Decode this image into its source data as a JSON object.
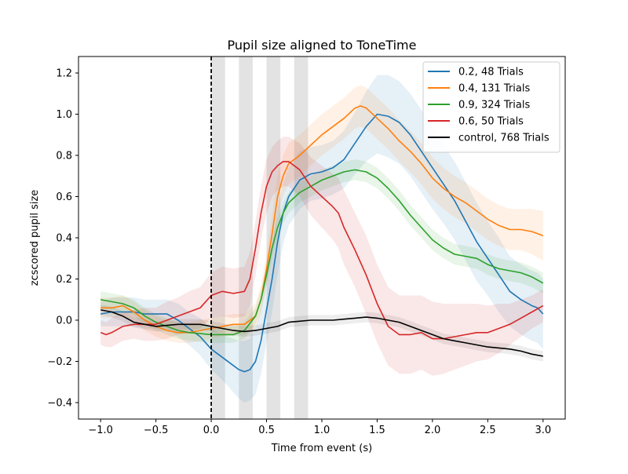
{
  "chart_data": {
    "type": "line",
    "title": "Pupil size aligned to ToneTime",
    "xlabel": "Time from event (s)",
    "ylabel": "zcscored pupil size",
    "xlim": [
      -1.2,
      3.2
    ],
    "ylim": [
      -0.48,
      1.28
    ],
    "xticks": [
      -1.0,
      -0.5,
      0.0,
      0.5,
      1.0,
      1.5,
      2.0,
      2.5,
      3.0
    ],
    "xtick_labels": [
      "−1.0",
      "−0.5",
      "0.0",
      "0.5",
      "1.0",
      "1.5",
      "2.0",
      "2.5",
      "3.0"
    ],
    "yticks": [
      -0.4,
      -0.2,
      0.0,
      0.2,
      0.4,
      0.6,
      0.8,
      1.0,
      1.2
    ],
    "ytick_labels": [
      "−0.4",
      "−0.2",
      "0.0",
      "0.2",
      "0.4",
      "0.6",
      "0.8",
      "1.0",
      "1.2"
    ],
    "grid": false,
    "legend_position": "top-right",
    "event_line_x": 0.0,
    "shaded_intervals": [
      [
        0.0,
        0.125
      ],
      [
        0.25,
        0.375
      ],
      [
        0.5,
        0.625
      ],
      [
        0.75,
        0.875
      ]
    ],
    "series": [
      {
        "name": "0.2, 48 Trials",
        "color": "#1f77b4",
        "points": [
          [
            -1.0,
            0.03
          ],
          [
            -0.9,
            0.04
          ],
          [
            -0.8,
            0.04
          ],
          [
            -0.7,
            0.04
          ],
          [
            -0.6,
            0.03
          ],
          [
            -0.5,
            0.03
          ],
          [
            -0.4,
            0.03
          ],
          [
            -0.3,
            0.0
          ],
          [
            -0.2,
            -0.04
          ],
          [
            -0.1,
            -0.08
          ],
          [
            0.0,
            -0.14
          ],
          [
            0.1,
            -0.18
          ],
          [
            0.2,
            -0.22
          ],
          [
            0.25,
            -0.24
          ],
          [
            0.3,
            -0.25
          ],
          [
            0.35,
            -0.24
          ],
          [
            0.4,
            -0.2
          ],
          [
            0.45,
            -0.1
          ],
          [
            0.5,
            0.05
          ],
          [
            0.55,
            0.2
          ],
          [
            0.6,
            0.38
          ],
          [
            0.65,
            0.52
          ],
          [
            0.7,
            0.6
          ],
          [
            0.8,
            0.68
          ],
          [
            0.9,
            0.71
          ],
          [
            1.0,
            0.72
          ],
          [
            1.1,
            0.74
          ],
          [
            1.2,
            0.78
          ],
          [
            1.3,
            0.86
          ],
          [
            1.4,
            0.94
          ],
          [
            1.5,
            1.0
          ],
          [
            1.6,
            0.99
          ],
          [
            1.7,
            0.96
          ],
          [
            1.8,
            0.9
          ],
          [
            1.9,
            0.82
          ],
          [
            2.0,
            0.74
          ],
          [
            2.1,
            0.66
          ],
          [
            2.2,
            0.58
          ],
          [
            2.3,
            0.48
          ],
          [
            2.4,
            0.38
          ],
          [
            2.5,
            0.3
          ],
          [
            2.6,
            0.22
          ],
          [
            2.7,
            0.14
          ],
          [
            2.8,
            0.1
          ],
          [
            2.9,
            0.07
          ],
          [
            2.95,
            0.06
          ],
          [
            3.0,
            0.03
          ]
        ],
        "band": [
          0.06,
          0.07,
          0.07,
          0.07,
          0.07,
          0.07,
          0.07,
          0.08,
          0.08,
          0.09,
          0.1,
          0.11,
          0.13,
          0.14,
          0.15,
          0.15,
          0.16,
          0.16,
          0.16,
          0.16,
          0.16,
          0.15,
          0.14,
          0.14,
          0.13,
          0.13,
          0.13,
          0.14,
          0.15,
          0.17,
          0.19,
          0.2,
          0.2,
          0.2,
          0.2,
          0.2,
          0.19,
          0.19,
          0.19,
          0.19,
          0.18,
          0.18,
          0.17,
          0.17,
          0.17,
          0.17,
          0.17
        ]
      },
      {
        "name": "0.4, 131 Trials",
        "color": "#ff7f0e",
        "points": [
          [
            -1.0,
            0.06
          ],
          [
            -0.9,
            0.06
          ],
          [
            -0.8,
            0.07
          ],
          [
            -0.7,
            0.04
          ],
          [
            -0.6,
            0.0
          ],
          [
            -0.5,
            -0.03
          ],
          [
            -0.4,
            -0.05
          ],
          [
            -0.3,
            -0.06
          ],
          [
            -0.2,
            -0.06
          ],
          [
            -0.1,
            -0.05
          ],
          [
            0.0,
            -0.04
          ],
          [
            0.1,
            -0.03
          ],
          [
            0.2,
            -0.02
          ],
          [
            0.3,
            -0.02
          ],
          [
            0.4,
            0.02
          ],
          [
            0.45,
            0.1
          ],
          [
            0.5,
            0.25
          ],
          [
            0.55,
            0.42
          ],
          [
            0.6,
            0.6
          ],
          [
            0.65,
            0.7
          ],
          [
            0.7,
            0.76
          ],
          [
            0.8,
            0.8
          ],
          [
            0.9,
            0.85
          ],
          [
            1.0,
            0.9
          ],
          [
            1.1,
            0.94
          ],
          [
            1.2,
            0.98
          ],
          [
            1.3,
            1.03
          ],
          [
            1.35,
            1.04
          ],
          [
            1.4,
            1.03
          ],
          [
            1.5,
            0.98
          ],
          [
            1.6,
            0.93
          ],
          [
            1.7,
            0.87
          ],
          [
            1.8,
            0.82
          ],
          [
            1.9,
            0.76
          ],
          [
            2.0,
            0.69
          ],
          [
            2.1,
            0.64
          ],
          [
            2.2,
            0.6
          ],
          [
            2.3,
            0.57
          ],
          [
            2.4,
            0.53
          ],
          [
            2.5,
            0.49
          ],
          [
            2.6,
            0.46
          ],
          [
            2.7,
            0.44
          ],
          [
            2.8,
            0.44
          ],
          [
            2.9,
            0.43
          ],
          [
            3.0,
            0.41
          ]
        ],
        "band": [
          0.05,
          0.05,
          0.05,
          0.05,
          0.05,
          0.05,
          0.05,
          0.05,
          0.05,
          0.05,
          0.05,
          0.05,
          0.05,
          0.05,
          0.06,
          0.07,
          0.08,
          0.09,
          0.1,
          0.1,
          0.1,
          0.1,
          0.1,
          0.1,
          0.1,
          0.1,
          0.1,
          0.1,
          0.1,
          0.1,
          0.1,
          0.1,
          0.1,
          0.1,
          0.1,
          0.1,
          0.1,
          0.1,
          0.1,
          0.1,
          0.1,
          0.1,
          0.1,
          0.11,
          0.12
        ]
      },
      {
        "name": "0.9, 324 Trials",
        "color": "#2ca02c",
        "points": [
          [
            -1.0,
            0.1
          ],
          [
            -0.9,
            0.09
          ],
          [
            -0.8,
            0.08
          ],
          [
            -0.7,
            0.06
          ],
          [
            -0.6,
            0.02
          ],
          [
            -0.5,
            -0.01
          ],
          [
            -0.4,
            -0.03
          ],
          [
            -0.3,
            -0.05
          ],
          [
            -0.2,
            -0.06
          ],
          [
            -0.1,
            -0.065
          ],
          [
            0.0,
            -0.07
          ],
          [
            0.1,
            -0.07
          ],
          [
            0.2,
            -0.07
          ],
          [
            0.3,
            -0.05
          ],
          [
            0.4,
            0.02
          ],
          [
            0.45,
            0.1
          ],
          [
            0.5,
            0.22
          ],
          [
            0.55,
            0.35
          ],
          [
            0.6,
            0.45
          ],
          [
            0.65,
            0.52
          ],
          [
            0.7,
            0.57
          ],
          [
            0.8,
            0.62
          ],
          [
            0.9,
            0.65
          ],
          [
            1.0,
            0.68
          ],
          [
            1.1,
            0.7
          ],
          [
            1.2,
            0.72
          ],
          [
            1.3,
            0.73
          ],
          [
            1.4,
            0.72
          ],
          [
            1.5,
            0.69
          ],
          [
            1.6,
            0.64
          ],
          [
            1.7,
            0.58
          ],
          [
            1.8,
            0.51
          ],
          [
            1.9,
            0.45
          ],
          [
            2.0,
            0.39
          ],
          [
            2.1,
            0.35
          ],
          [
            2.2,
            0.32
          ],
          [
            2.3,
            0.31
          ],
          [
            2.4,
            0.3
          ],
          [
            2.5,
            0.27
          ],
          [
            2.6,
            0.25
          ],
          [
            2.7,
            0.24
          ],
          [
            2.8,
            0.23
          ],
          [
            2.9,
            0.21
          ],
          [
            3.0,
            0.18
          ]
        ],
        "band": [
          0.04,
          0.04,
          0.04,
          0.04,
          0.04,
          0.04,
          0.04,
          0.04,
          0.04,
          0.04,
          0.04,
          0.04,
          0.04,
          0.04,
          0.04,
          0.05,
          0.05,
          0.05,
          0.05,
          0.05,
          0.05,
          0.05,
          0.05,
          0.05,
          0.05,
          0.05,
          0.05,
          0.05,
          0.05,
          0.05,
          0.05,
          0.05,
          0.05,
          0.05,
          0.05,
          0.05,
          0.05,
          0.05,
          0.05,
          0.05,
          0.05,
          0.05,
          0.05,
          0.05
        ]
      },
      {
        "name": "0.6, 50 Trials",
        "color": "#d62728",
        "points": [
          [
            -1.0,
            -0.06
          ],
          [
            -0.95,
            -0.07
          ],
          [
            -0.9,
            -0.06
          ],
          [
            -0.8,
            -0.03
          ],
          [
            -0.7,
            -0.02
          ],
          [
            -0.6,
            -0.02
          ],
          [
            -0.5,
            -0.02
          ],
          [
            -0.4,
            0.0
          ],
          [
            -0.3,
            0.02
          ],
          [
            -0.2,
            0.04
          ],
          [
            -0.1,
            0.06
          ],
          [
            0.0,
            0.12
          ],
          [
            0.1,
            0.14
          ],
          [
            0.2,
            0.13
          ],
          [
            0.3,
            0.14
          ],
          [
            0.35,
            0.2
          ],
          [
            0.4,
            0.35
          ],
          [
            0.45,
            0.52
          ],
          [
            0.5,
            0.65
          ],
          [
            0.55,
            0.72
          ],
          [
            0.6,
            0.75
          ],
          [
            0.65,
            0.77
          ],
          [
            0.7,
            0.77
          ],
          [
            0.8,
            0.73
          ],
          [
            0.9,
            0.65
          ],
          [
            1.0,
            0.6
          ],
          [
            1.1,
            0.55
          ],
          [
            1.15,
            0.52
          ],
          [
            1.2,
            0.45
          ],
          [
            1.3,
            0.34
          ],
          [
            1.4,
            0.22
          ],
          [
            1.5,
            0.08
          ],
          [
            1.6,
            -0.03
          ],
          [
            1.7,
            -0.07
          ],
          [
            1.8,
            -0.07
          ],
          [
            1.9,
            -0.06
          ],
          [
            2.0,
            -0.09
          ],
          [
            2.1,
            -0.09
          ],
          [
            2.2,
            -0.08
          ],
          [
            2.3,
            -0.07
          ],
          [
            2.4,
            -0.06
          ],
          [
            2.5,
            -0.06
          ],
          [
            2.6,
            -0.04
          ],
          [
            2.7,
            -0.02
          ],
          [
            2.8,
            0.01
          ],
          [
            2.9,
            0.04
          ],
          [
            3.0,
            0.07
          ]
        ],
        "band": [
          0.06,
          0.06,
          0.07,
          0.07,
          0.07,
          0.08,
          0.08,
          0.09,
          0.09,
          0.1,
          0.1,
          0.11,
          0.12,
          0.12,
          0.12,
          0.13,
          0.13,
          0.13,
          0.13,
          0.12,
          0.12,
          0.12,
          0.12,
          0.13,
          0.14,
          0.15,
          0.16,
          0.17,
          0.18,
          0.18,
          0.19,
          0.19,
          0.19,
          0.19,
          0.19,
          0.18,
          0.18,
          0.17,
          0.16,
          0.15,
          0.14,
          0.13,
          0.12,
          0.1,
          0.09,
          0.08,
          0.08
        ]
      },
      {
        "name": "control, 768 Trials",
        "color": "#000000",
        "points": [
          [
            -1.0,
            0.05
          ],
          [
            -0.9,
            0.04
          ],
          [
            -0.8,
            0.02
          ],
          [
            -0.7,
            -0.01
          ],
          [
            -0.6,
            -0.02
          ],
          [
            -0.5,
            -0.03
          ],
          [
            -0.4,
            -0.025
          ],
          [
            -0.3,
            -0.02
          ],
          [
            -0.2,
            -0.02
          ],
          [
            -0.1,
            -0.02
          ],
          [
            0.0,
            -0.03
          ],
          [
            0.1,
            -0.04
          ],
          [
            0.2,
            -0.05
          ],
          [
            0.3,
            -0.055
          ],
          [
            0.4,
            -0.05
          ],
          [
            0.5,
            -0.04
          ],
          [
            0.6,
            -0.03
          ],
          [
            0.7,
            -0.01
          ],
          [
            0.8,
            -0.005
          ],
          [
            0.9,
            0.0
          ],
          [
            1.0,
            0.0
          ],
          [
            1.1,
            0.0
          ],
          [
            1.2,
            0.005
          ],
          [
            1.3,
            0.01
          ],
          [
            1.4,
            0.015
          ],
          [
            1.5,
            0.01
          ],
          [
            1.6,
            0.0
          ],
          [
            1.7,
            -0.01
          ],
          [
            1.8,
            -0.03
          ],
          [
            1.9,
            -0.05
          ],
          [
            2.0,
            -0.07
          ],
          [
            2.1,
            -0.09
          ],
          [
            2.2,
            -0.1
          ],
          [
            2.3,
            -0.11
          ],
          [
            2.4,
            -0.12
          ],
          [
            2.5,
            -0.13
          ],
          [
            2.6,
            -0.135
          ],
          [
            2.7,
            -0.14
          ],
          [
            2.8,
            -0.15
          ],
          [
            2.9,
            -0.165
          ],
          [
            3.0,
            -0.175
          ]
        ],
        "band": [
          0.025,
          0.025,
          0.025,
          0.025,
          0.025,
          0.025,
          0.025,
          0.025,
          0.025,
          0.025,
          0.025,
          0.025,
          0.025,
          0.025,
          0.025,
          0.025,
          0.025,
          0.025,
          0.025,
          0.025,
          0.025,
          0.025,
          0.025,
          0.025,
          0.025,
          0.025,
          0.025,
          0.025,
          0.025,
          0.025,
          0.025,
          0.025,
          0.025,
          0.025,
          0.025,
          0.025,
          0.025,
          0.025,
          0.025,
          0.025,
          0.025
        ]
      }
    ]
  }
}
